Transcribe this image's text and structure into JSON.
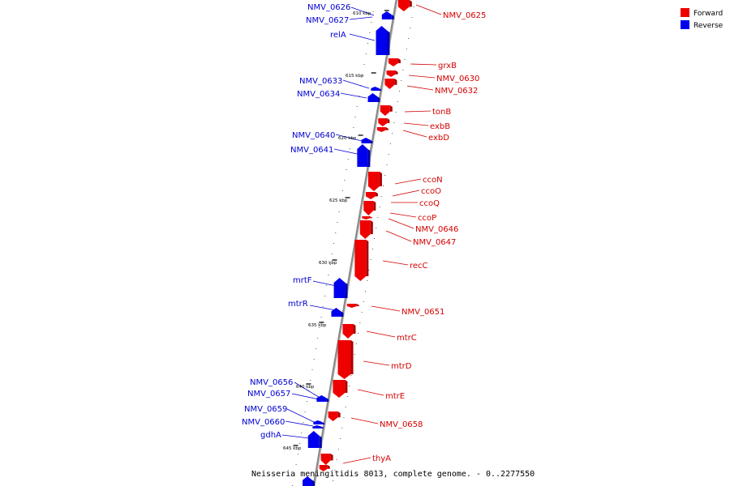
{
  "title": "Neisseria meningitidis 8013, complete genome. - 0..2277550",
  "legend": [
    {
      "label": "Forward",
      "color": "#ee0000"
    },
    {
      "label": "Reverse",
      "color": "#0000ee"
    }
  ],
  "colors": {
    "forward": "#ee0000",
    "forward_dark": "#aa0000",
    "reverse": "#0000ee",
    "reverse_dark": "#0000aa",
    "label_forward": "#d40000",
    "label_reverse": "#0000d0",
    "backbone": "#888888"
  },
  "ticks": [
    "610 kbp",
    "615 kbp",
    "620 kbp",
    "625 kbp",
    "630 kbp",
    "635 kbp",
    "640 kbp",
    "645 kbp"
  ],
  "genes_forward": [
    "NMV_0625",
    "grxB",
    "NMV_0630",
    "NMV_0632",
    "tonB",
    "exbB",
    "exbD",
    "ccoN",
    "ccoO",
    "ccoQ",
    "ccoP",
    "NMV_0646",
    "NMV_0647",
    "recC",
    "NMV_0651",
    "mtrC",
    "mtrD",
    "mtrE",
    "NMV_0658",
    "thyA"
  ],
  "genes_reverse": [
    "NMV_0626",
    "NMV_0627",
    "relA",
    "NMV_0633",
    "NMV_0634",
    "NMV_0640",
    "NMV_0641",
    "mrtF",
    "mtrR",
    "NMV_0656",
    "NMV_0657",
    "NMV_0659",
    "NMV_0660",
    "gdhA"
  ]
}
